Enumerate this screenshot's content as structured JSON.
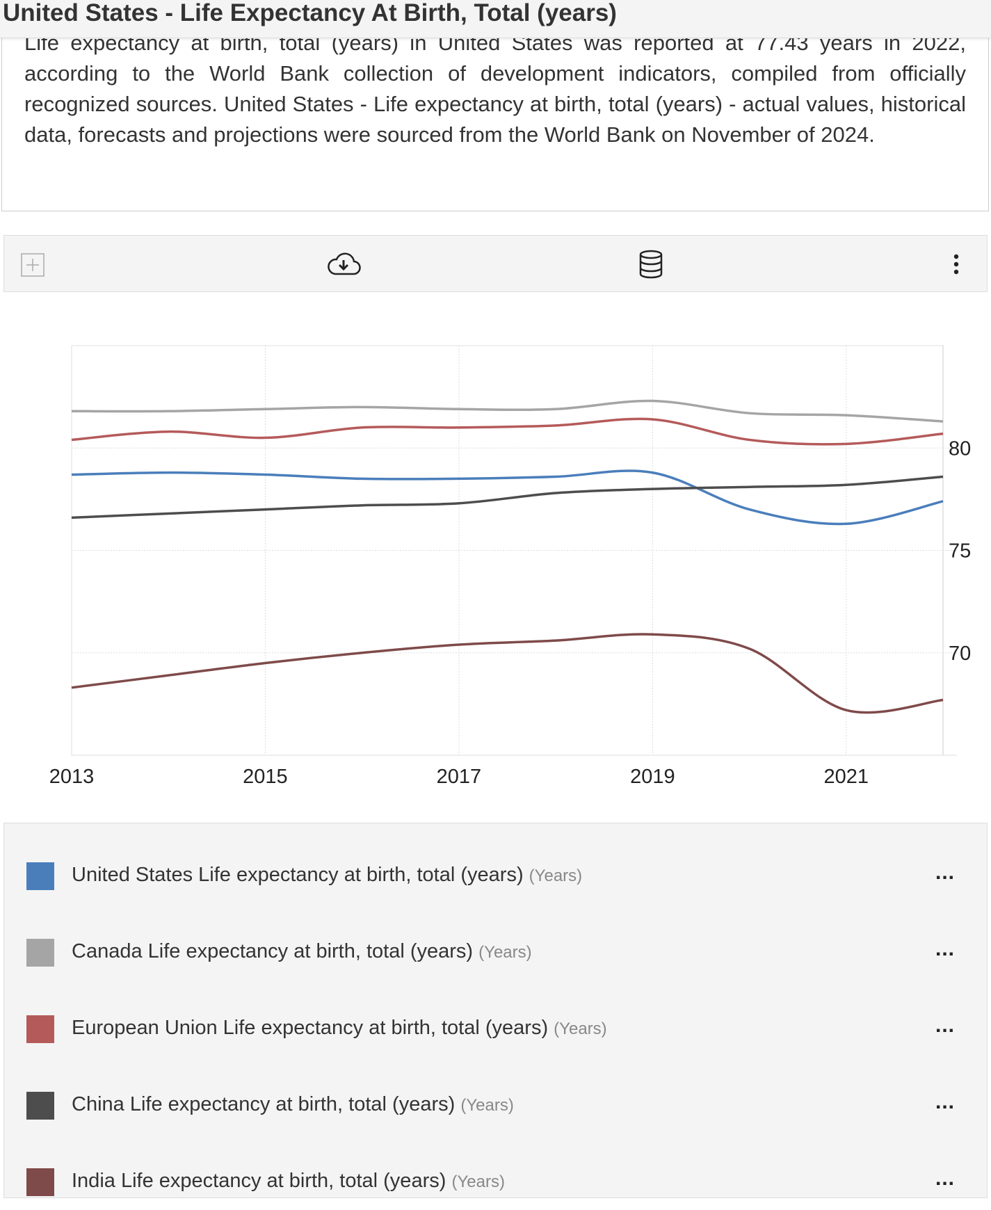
{
  "header": {
    "title": "United States - Life Expectancy At Birth, Total (years)"
  },
  "description": "Life expectancy at birth, total (years) in United States was reported at 77.43 years in 2022, according to the World Bank collection of development indicators, compiled from officially recognized sources. United States - Life expectancy at birth, total (years) - actual values, historical data, forecasts and projections were sourced from the World Bank on November of 2024.",
  "toolbar": {
    "icons": [
      "plus-icon",
      "cloud-download-icon",
      "database-icon",
      "more-vertical-icon"
    ]
  },
  "chart_data": {
    "type": "line",
    "x": [
      2013,
      2014,
      2015,
      2016,
      2017,
      2018,
      2019,
      2020,
      2021,
      2022
    ],
    "xticks": [
      "2013",
      "2015",
      "2017",
      "2019",
      "2021"
    ],
    "yticks": [
      "70",
      "75",
      "80"
    ],
    "ylim": [
      65,
      85
    ],
    "yaxis_position": "right",
    "grid": true,
    "series": [
      {
        "name": "United States Life expectancy at birth, total (years)",
        "unit": "(Years)",
        "color": "#4a7ebb",
        "values": [
          78.7,
          78.8,
          78.7,
          78.5,
          78.5,
          78.6,
          78.8,
          77.0,
          76.3,
          77.4
        ]
      },
      {
        "name": "Canada Life expectancy at birth, total (years)",
        "unit": "(Years)",
        "color": "#a5a5a5",
        "values": [
          81.8,
          81.8,
          81.9,
          82.0,
          81.9,
          81.9,
          82.3,
          81.7,
          81.6,
          81.3
        ]
      },
      {
        "name": "European Union Life expectancy at birth, total (years)",
        "unit": "(Years)",
        "color": "#b55a5a",
        "values": [
          80.4,
          80.8,
          80.5,
          81.0,
          81.0,
          81.1,
          81.4,
          80.4,
          80.2,
          80.7
        ]
      },
      {
        "name": "China Life expectancy at birth, total (years)",
        "unit": "(Years)",
        "color": "#4d4d4d",
        "values": [
          76.6,
          76.8,
          77.0,
          77.2,
          77.3,
          77.8,
          78.0,
          78.1,
          78.2,
          78.6
        ]
      },
      {
        "name": "India Life expectancy at birth, total (years)",
        "unit": "(Years)",
        "color": "#7f4a4a",
        "values": [
          68.3,
          68.9,
          69.5,
          70.0,
          70.4,
          70.6,
          70.9,
          70.2,
          67.2,
          67.7
        ]
      }
    ]
  },
  "legend": {
    "more_label": "..."
  }
}
